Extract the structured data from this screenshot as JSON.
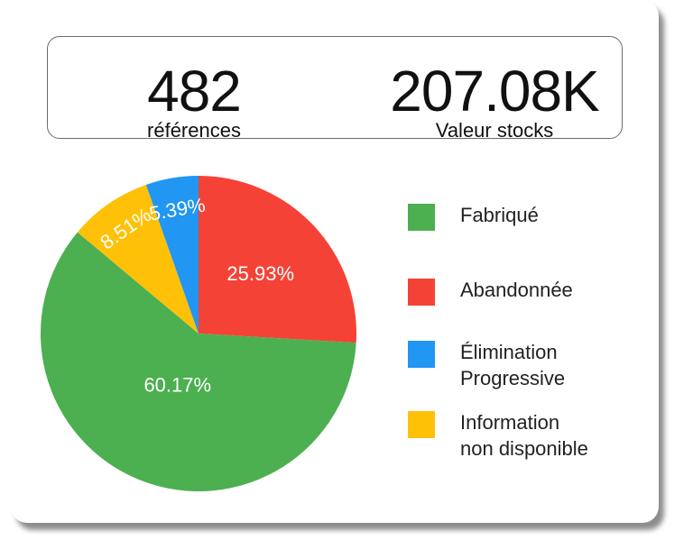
{
  "kpis": {
    "references": {
      "value": "482",
      "label": "références"
    },
    "stock_value": {
      "value": "207.08K",
      "label": "Valeur stocks"
    }
  },
  "colors": {
    "fabrique": "#4caf50",
    "abandonnee": "#f44336",
    "elimination": "#2196f3",
    "information": "#ffc107"
  },
  "chart_data": {
    "type": "pie",
    "title": "",
    "slices": [
      {
        "name": "Abandonnée",
        "value": 25.93,
        "label": "25.93%",
        "color": "#f44336"
      },
      {
        "name": "Fabriqué",
        "value": 60.17,
        "label": "60.17%",
        "color": "#4caf50"
      },
      {
        "name": "Information non disponible",
        "value": 8.51,
        "label": "8.51%",
        "color": "#ffc107"
      },
      {
        "name": "Élimination Progressive",
        "value": 5.39,
        "label": "5.39%",
        "color": "#2196f3"
      }
    ],
    "legend": {
      "placement": "right",
      "entries": [
        {
          "label": "Fabriqué",
          "color": "#4caf50"
        },
        {
          "label": "Abandonnée",
          "color": "#f44336"
        },
        {
          "label": "Élimination\nProgressive",
          "color": "#2196f3"
        },
        {
          "label": "Information\nnon disponible",
          "color": "#ffc107"
        }
      ]
    }
  }
}
